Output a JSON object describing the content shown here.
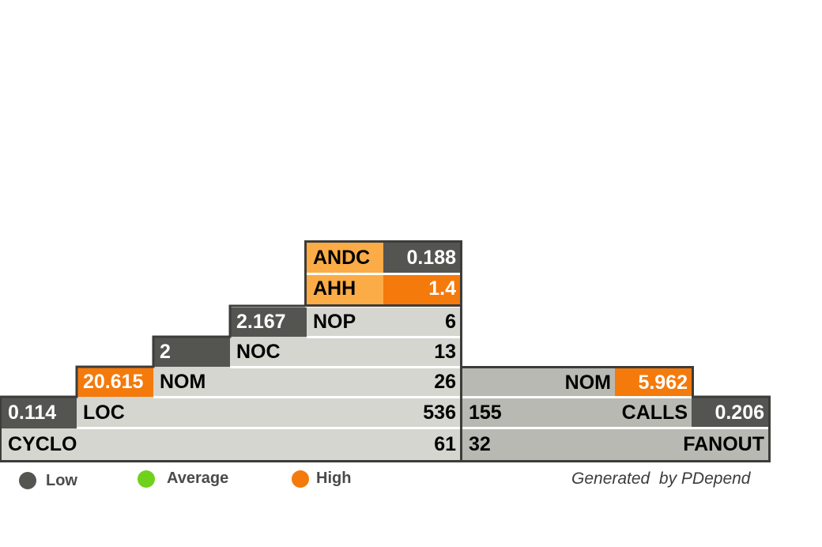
{
  "pyramid": {
    "andc": {
      "label": "ANDC",
      "value": "0.188"
    },
    "ahh": {
      "label": "AHH",
      "value": "1.4"
    },
    "nop": {
      "ratio": "2.167",
      "label": "NOP",
      "value": "6"
    },
    "noc": {
      "ratio": "2",
      "label": "NOC",
      "value": "13"
    },
    "nom": {
      "ratio": "20.615",
      "label": "NOM",
      "value": "26"
    },
    "loc": {
      "ratio": "0.114",
      "label": "LOC",
      "value": "536"
    },
    "cyclo": {
      "label": "CYCLO",
      "value": "61"
    },
    "right_nom": {
      "label": "NOM",
      "ratio": "5.962"
    },
    "calls": {
      "value": "155",
      "label": "CALLS",
      "ratio": "0.206"
    },
    "fanout": {
      "value": "32",
      "label": "FANOUT"
    }
  },
  "legend": {
    "low": {
      "label": "Low",
      "color": "#545451"
    },
    "average": {
      "label": "Average",
      "color": "#6fd11c"
    },
    "high": {
      "label": "High",
      "color": "#f47a0c"
    }
  },
  "footer": {
    "text": "Generated  by PDepend"
  }
}
